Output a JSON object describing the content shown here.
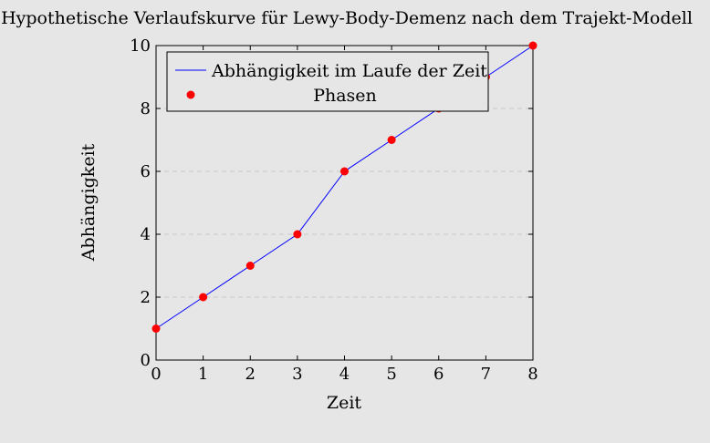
{
  "chart_data": {
    "type": "line",
    "title": "Hypothetische Verlaufskurve für Lewy-Body-Demenz nach dem Trajekt-Modell",
    "xlabel": "Zeit",
    "ylabel": "Abhängigkeit",
    "xlim": [
      0,
      8
    ],
    "ylim": [
      0,
      10
    ],
    "xticks": [
      "0",
      "1",
      "2",
      "3",
      "4",
      "5",
      "6",
      "7",
      "8"
    ],
    "yticks": [
      "0",
      "2",
      "4",
      "6",
      "8",
      "10"
    ],
    "grid": "horizontal dashed",
    "legend_position": "top-left",
    "series": [
      {
        "name": "Abhängigkeit im Laufe der Zeit",
        "style": "line",
        "color": "#0000ff",
        "x": [
          0,
          1,
          2,
          3,
          4,
          5,
          6,
          7,
          8
        ],
        "y": [
          1,
          2,
          3,
          4,
          6,
          7,
          8,
          9,
          10
        ]
      },
      {
        "name": "Phasen",
        "style": "markers",
        "color": "#ff0000",
        "x": [
          0,
          1,
          2,
          3,
          4,
          5,
          6,
          7,
          8
        ],
        "y": [
          1,
          2,
          3,
          4,
          6,
          7,
          8,
          9,
          10
        ]
      }
    ]
  }
}
